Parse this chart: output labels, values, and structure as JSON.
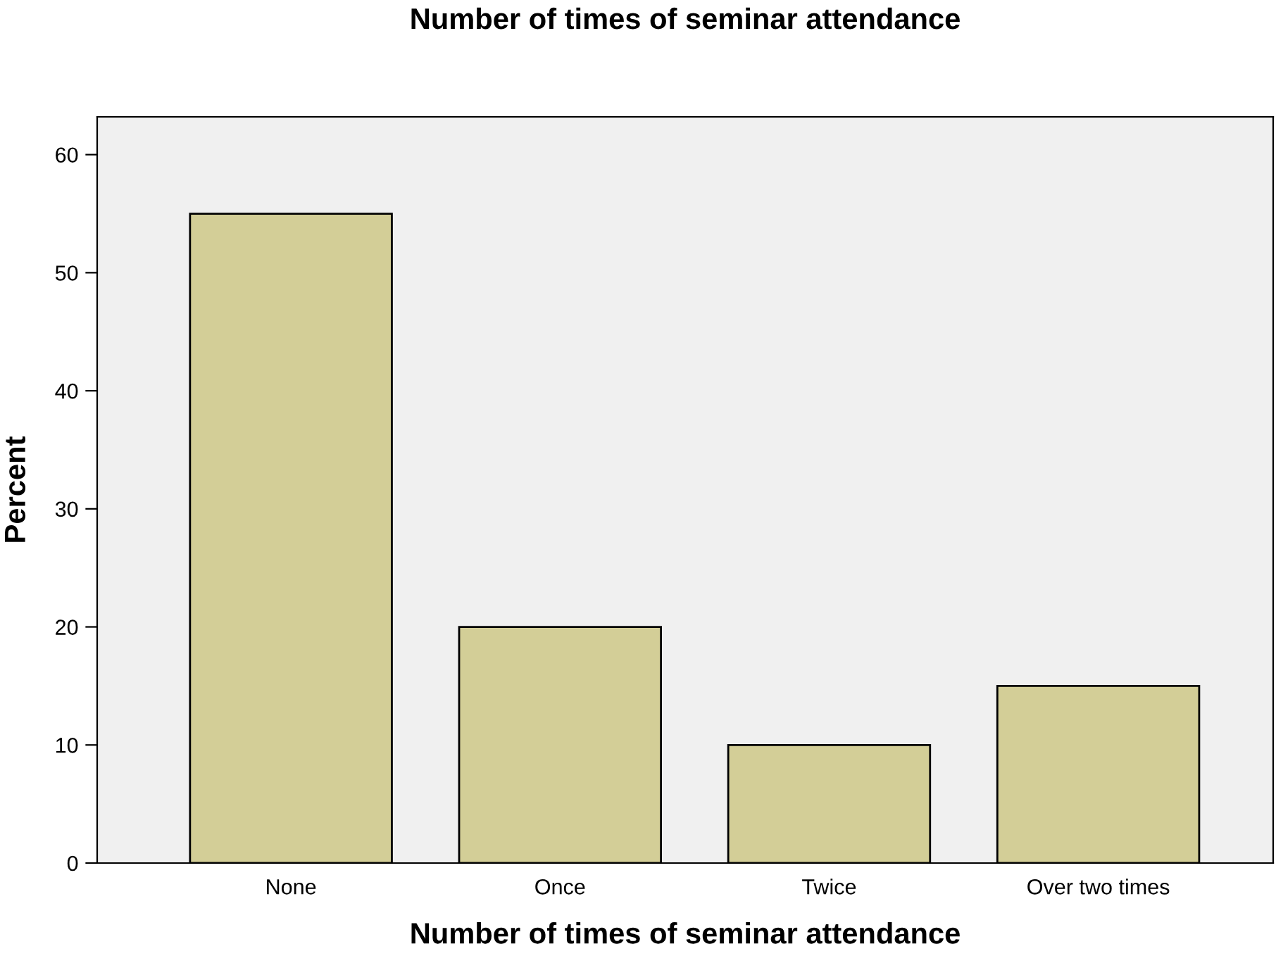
{
  "chart_data": {
    "type": "bar",
    "title": "Number of times of seminar attendance",
    "xlabel": "Number of times of seminar attendance",
    "ylabel": "Percent",
    "categories": [
      "None",
      "Once",
      "Twice",
      "Over two times"
    ],
    "values": [
      55,
      20,
      10,
      15
    ],
    "color": "#d3ce97",
    "ylim": [
      0,
      63.2
    ],
    "yticks": [
      0,
      10,
      20,
      30,
      40,
      50,
      60
    ],
    "grid": false,
    "legend": false
  }
}
